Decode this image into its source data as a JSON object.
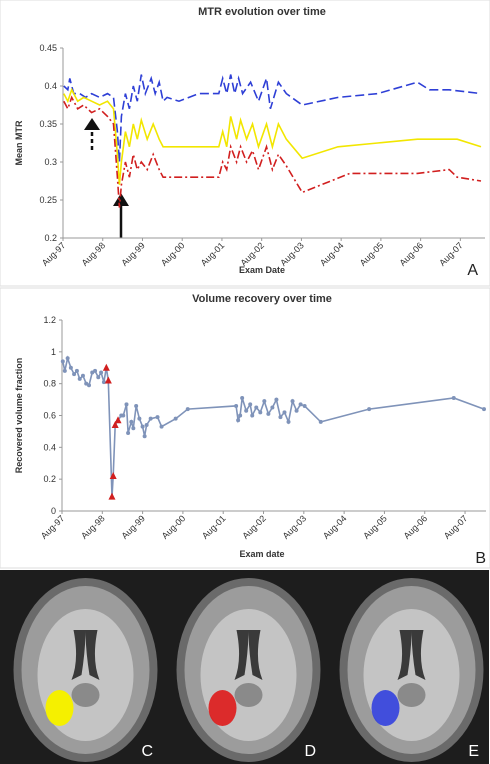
{
  "chart_data": [
    {
      "type": "line",
      "title": "MTR evolution over time",
      "xlabel": "Exam Date",
      "ylabel": "Mean MTR",
      "panel_label": "A",
      "xlim": [
        1997.58,
        2008.2
      ],
      "ylim": [
        0.2,
        0.45
      ],
      "xticks": [
        {
          "value": 1997.58,
          "label": "Aug-97"
        },
        {
          "value": 1998.58,
          "label": "Aug-98"
        },
        {
          "value": 1999.58,
          "label": "Aug-99"
        },
        {
          "value": 2000.58,
          "label": "Aug-00"
        },
        {
          "value": 2001.58,
          "label": "Aug-01"
        },
        {
          "value": 2002.58,
          "label": "Aug-02"
        },
        {
          "value": 2003.58,
          "label": "Aug-03"
        },
        {
          "value": 2004.58,
          "label": "Aug-04"
        },
        {
          "value": 2005.58,
          "label": "Aug-05"
        },
        {
          "value": 2006.58,
          "label": "Aug-06"
        },
        {
          "value": 2007.58,
          "label": "Aug-07"
        }
      ],
      "yticks": [
        0.2,
        0.25,
        0.3,
        0.35,
        0.4,
        0.45
      ],
      "grid": false,
      "series": [
        {
          "color": "#2e3fd6",
          "dash": "9,4",
          "x": [
            1997.6,
            1997.7,
            1997.75,
            1997.85,
            1998.0,
            1998.15,
            1998.3,
            1998.5,
            1998.7,
            1998.85,
            1998.95,
            1999.0,
            1999.05,
            1999.15,
            1999.25,
            1999.35,
            1999.45,
            1999.55,
            1999.65,
            1999.8,
            1999.9,
            2000.0,
            2000.1,
            2000.2,
            2000.5,
            2001.0,
            2001.5,
            2001.6,
            2001.7,
            2001.8,
            2001.9,
            2002.0,
            2002.1,
            2002.3,
            2002.5,
            2002.7,
            2002.8,
            2003.0,
            2003.2,
            2003.6,
            2004.5,
            2005.5,
            2006.5,
            2006.8,
            2007.3,
            2008.1
          ],
          "values": [
            0.4,
            0.395,
            0.41,
            0.39,
            0.39,
            0.385,
            0.39,
            0.385,
            0.39,
            0.385,
            0.34,
            0.3,
            0.36,
            0.39,
            0.37,
            0.4,
            0.38,
            0.415,
            0.39,
            0.41,
            0.39,
            0.405,
            0.38,
            0.385,
            0.38,
            0.39,
            0.39,
            0.41,
            0.39,
            0.415,
            0.39,
            0.41,
            0.39,
            0.405,
            0.38,
            0.41,
            0.37,
            0.405,
            0.39,
            0.375,
            0.385,
            0.39,
            0.405,
            0.395,
            0.395,
            0.39
          ]
        },
        {
          "color": "#f2e600",
          "dash": "",
          "x": [
            1997.6,
            1997.7,
            1997.8,
            1997.95,
            1998.1,
            1998.3,
            1998.5,
            1998.7,
            1998.85,
            1998.95,
            1999.0,
            1999.05,
            1999.15,
            1999.25,
            1999.35,
            1999.45,
            1999.55,
            1999.7,
            1999.85,
            2000.0,
            2000.1,
            2000.5,
            2001.5,
            2001.6,
            2001.7,
            2001.8,
            2001.95,
            2002.05,
            2002.2,
            2002.35,
            2002.5,
            2002.7,
            2002.85,
            2003.0,
            2003.2,
            2003.6,
            2004.5,
            2005.5,
            2006.5,
            2007.0,
            2007.5,
            2008.1
          ],
          "values": [
            0.39,
            0.38,
            0.395,
            0.38,
            0.385,
            0.38,
            0.375,
            0.38,
            0.37,
            0.31,
            0.27,
            0.3,
            0.34,
            0.32,
            0.35,
            0.33,
            0.355,
            0.33,
            0.35,
            0.33,
            0.32,
            0.32,
            0.32,
            0.34,
            0.32,
            0.36,
            0.33,
            0.355,
            0.33,
            0.35,
            0.32,
            0.35,
            0.32,
            0.35,
            0.33,
            0.305,
            0.32,
            0.325,
            0.33,
            0.33,
            0.33,
            0.32
          ]
        },
        {
          "color": "#d11f1f",
          "dash": "8,3,2,3",
          "x": [
            1997.6,
            1997.7,
            1997.8,
            1997.95,
            1998.1,
            1998.3,
            1998.5,
            1998.7,
            1998.85,
            1998.95,
            1999.0,
            1999.05,
            1999.15,
            1999.25,
            1999.35,
            1999.45,
            1999.55,
            1999.7,
            1999.85,
            2000.0,
            2000.1,
            2000.5,
            2001.5,
            2001.6,
            2001.7,
            2001.8,
            2001.95,
            2002.05,
            2002.2,
            2002.35,
            2002.5,
            2002.7,
            2002.85,
            2003.0,
            2003.2,
            2003.6,
            2004.8,
            2005.5,
            2006.5,
            2007.3,
            2007.5,
            2008.1
          ],
          "values": [
            0.38,
            0.37,
            0.385,
            0.37,
            0.375,
            0.365,
            0.37,
            0.36,
            0.35,
            0.28,
            0.24,
            0.27,
            0.3,
            0.28,
            0.31,
            0.29,
            0.3,
            0.29,
            0.31,
            0.29,
            0.28,
            0.28,
            0.28,
            0.3,
            0.29,
            0.32,
            0.3,
            0.32,
            0.3,
            0.315,
            0.29,
            0.32,
            0.29,
            0.31,
            0.295,
            0.26,
            0.285,
            0.285,
            0.285,
            0.29,
            0.28,
            0.275
          ]
        }
      ]
    },
    {
      "type": "line",
      "title": "Volume recovery over time",
      "xlabel": "Exam date",
      "ylabel": "Recovered volume fraction",
      "panel_label": "B",
      "xlim": [
        1997.58,
        2008.1
      ],
      "ylim": [
        0,
        1.2
      ],
      "xticks": [
        {
          "value": 1997.58,
          "label": "Aug-97"
        },
        {
          "value": 1998.58,
          "label": "Aug-98"
        },
        {
          "value": 1999.58,
          "label": "Aug-99"
        },
        {
          "value": 2000.58,
          "label": "Aug-00"
        },
        {
          "value": 2001.58,
          "label": "Aug-01"
        },
        {
          "value": 2002.58,
          "label": "Aug-02"
        },
        {
          "value": 2003.58,
          "label": "Aug-03"
        },
        {
          "value": 2004.58,
          "label": "Aug-04"
        },
        {
          "value": 2005.58,
          "label": "Aug-05"
        },
        {
          "value": 2006.58,
          "label": "Aug-06"
        },
        {
          "value": 2007.58,
          "label": "Aug-07"
        }
      ],
      "yticks": [
        0,
        0.2,
        0.4,
        0.6,
        0.8,
        1,
        1.2
      ],
      "grid": false,
      "series": [
        {
          "color": "#7f93b9",
          "dash": "",
          "x": [
            1997.6,
            1997.65,
            1997.72,
            1997.8,
            1997.88,
            1997.95,
            1998.02,
            1998.1,
            1998.18,
            1998.25,
            1998.33,
            1998.4,
            1998.48,
            1998.55,
            1998.62,
            1998.68,
            1998.73,
            1998.82,
            1998.85,
            1998.9,
            1998.97,
            1999.05,
            1999.1,
            1999.18,
            1999.22,
            1999.3,
            1999.35,
            1999.42,
            1999.5,
            1999.58,
            1999.63,
            1999.68,
            1999.78,
            1999.95,
            2000.05,
            2000.4,
            2000.7,
            2001.9,
            2001.95,
            2002.0,
            2002.05,
            2002.15,
            2002.25,
            2002.3,
            2002.4,
            2002.5,
            2002.6,
            2002.7,
            2002.8,
            2002.9,
            2003.0,
            2003.1,
            2003.2,
            2003.3,
            2003.4,
            2003.5,
            2003.6,
            2004.0,
            2005.2,
            2007.3,
            2008.05
          ],
          "values": [
            0.94,
            0.88,
            0.96,
            0.9,
            0.86,
            0.88,
            0.83,
            0.85,
            0.8,
            0.79,
            0.87,
            0.88,
            0.84,
            0.87,
            0.81,
            0.9,
            0.82,
            0.09,
            0.22,
            0.54,
            0.57,
            0.6,
            0.6,
            0.67,
            0.49,
            0.56,
            0.52,
            0.66,
            0.58,
            0.53,
            0.47,
            0.54,
            0.58,
            0.59,
            0.53,
            0.58,
            0.64,
            0.66,
            0.57,
            0.6,
            0.71,
            0.63,
            0.67,
            0.6,
            0.65,
            0.62,
            0.69,
            0.61,
            0.65,
            0.7,
            0.59,
            0.62,
            0.56,
            0.69,
            0.63,
            0.67,
            0.66,
            0.56,
            0.64,
            0.71,
            0.64
          ],
          "markers": [
            "circle",
            "circle",
            "circle",
            "circle",
            "circle",
            "circle",
            "circle",
            "circle",
            "circle",
            "circle",
            "circle",
            "circle",
            "circle",
            "circle",
            "circle",
            "triangle",
            "triangle",
            "triangle",
            "triangle",
            "triangle",
            "triangle",
            "circle",
            "circle",
            "circle",
            "circle",
            "circle",
            "circle",
            "circle",
            "circle",
            "circle",
            "circle",
            "circle",
            "circle",
            "circle",
            "circle",
            "circle",
            "circle",
            "circle",
            "circle",
            "circle",
            "circle",
            "circle",
            "circle",
            "circle",
            "circle",
            "circle",
            "circle",
            "circle",
            "circle",
            "circle",
            "circle",
            "circle",
            "circle",
            "circle",
            "circle",
            "circle",
            "circle",
            "circle",
            "circle",
            "circle",
            "circle"
          ],
          "marker_colors": {
            "circle": "#7f93b9",
            "triangle": "#d11f1f"
          }
        }
      ]
    }
  ],
  "images": [
    {
      "panel_label": "C",
      "lesion_color": "#f5f000"
    },
    {
      "panel_label": "D",
      "lesion_color": "#e01010"
    },
    {
      "panel_label": "E",
      "lesion_color": "#2a3ae0"
    }
  ]
}
